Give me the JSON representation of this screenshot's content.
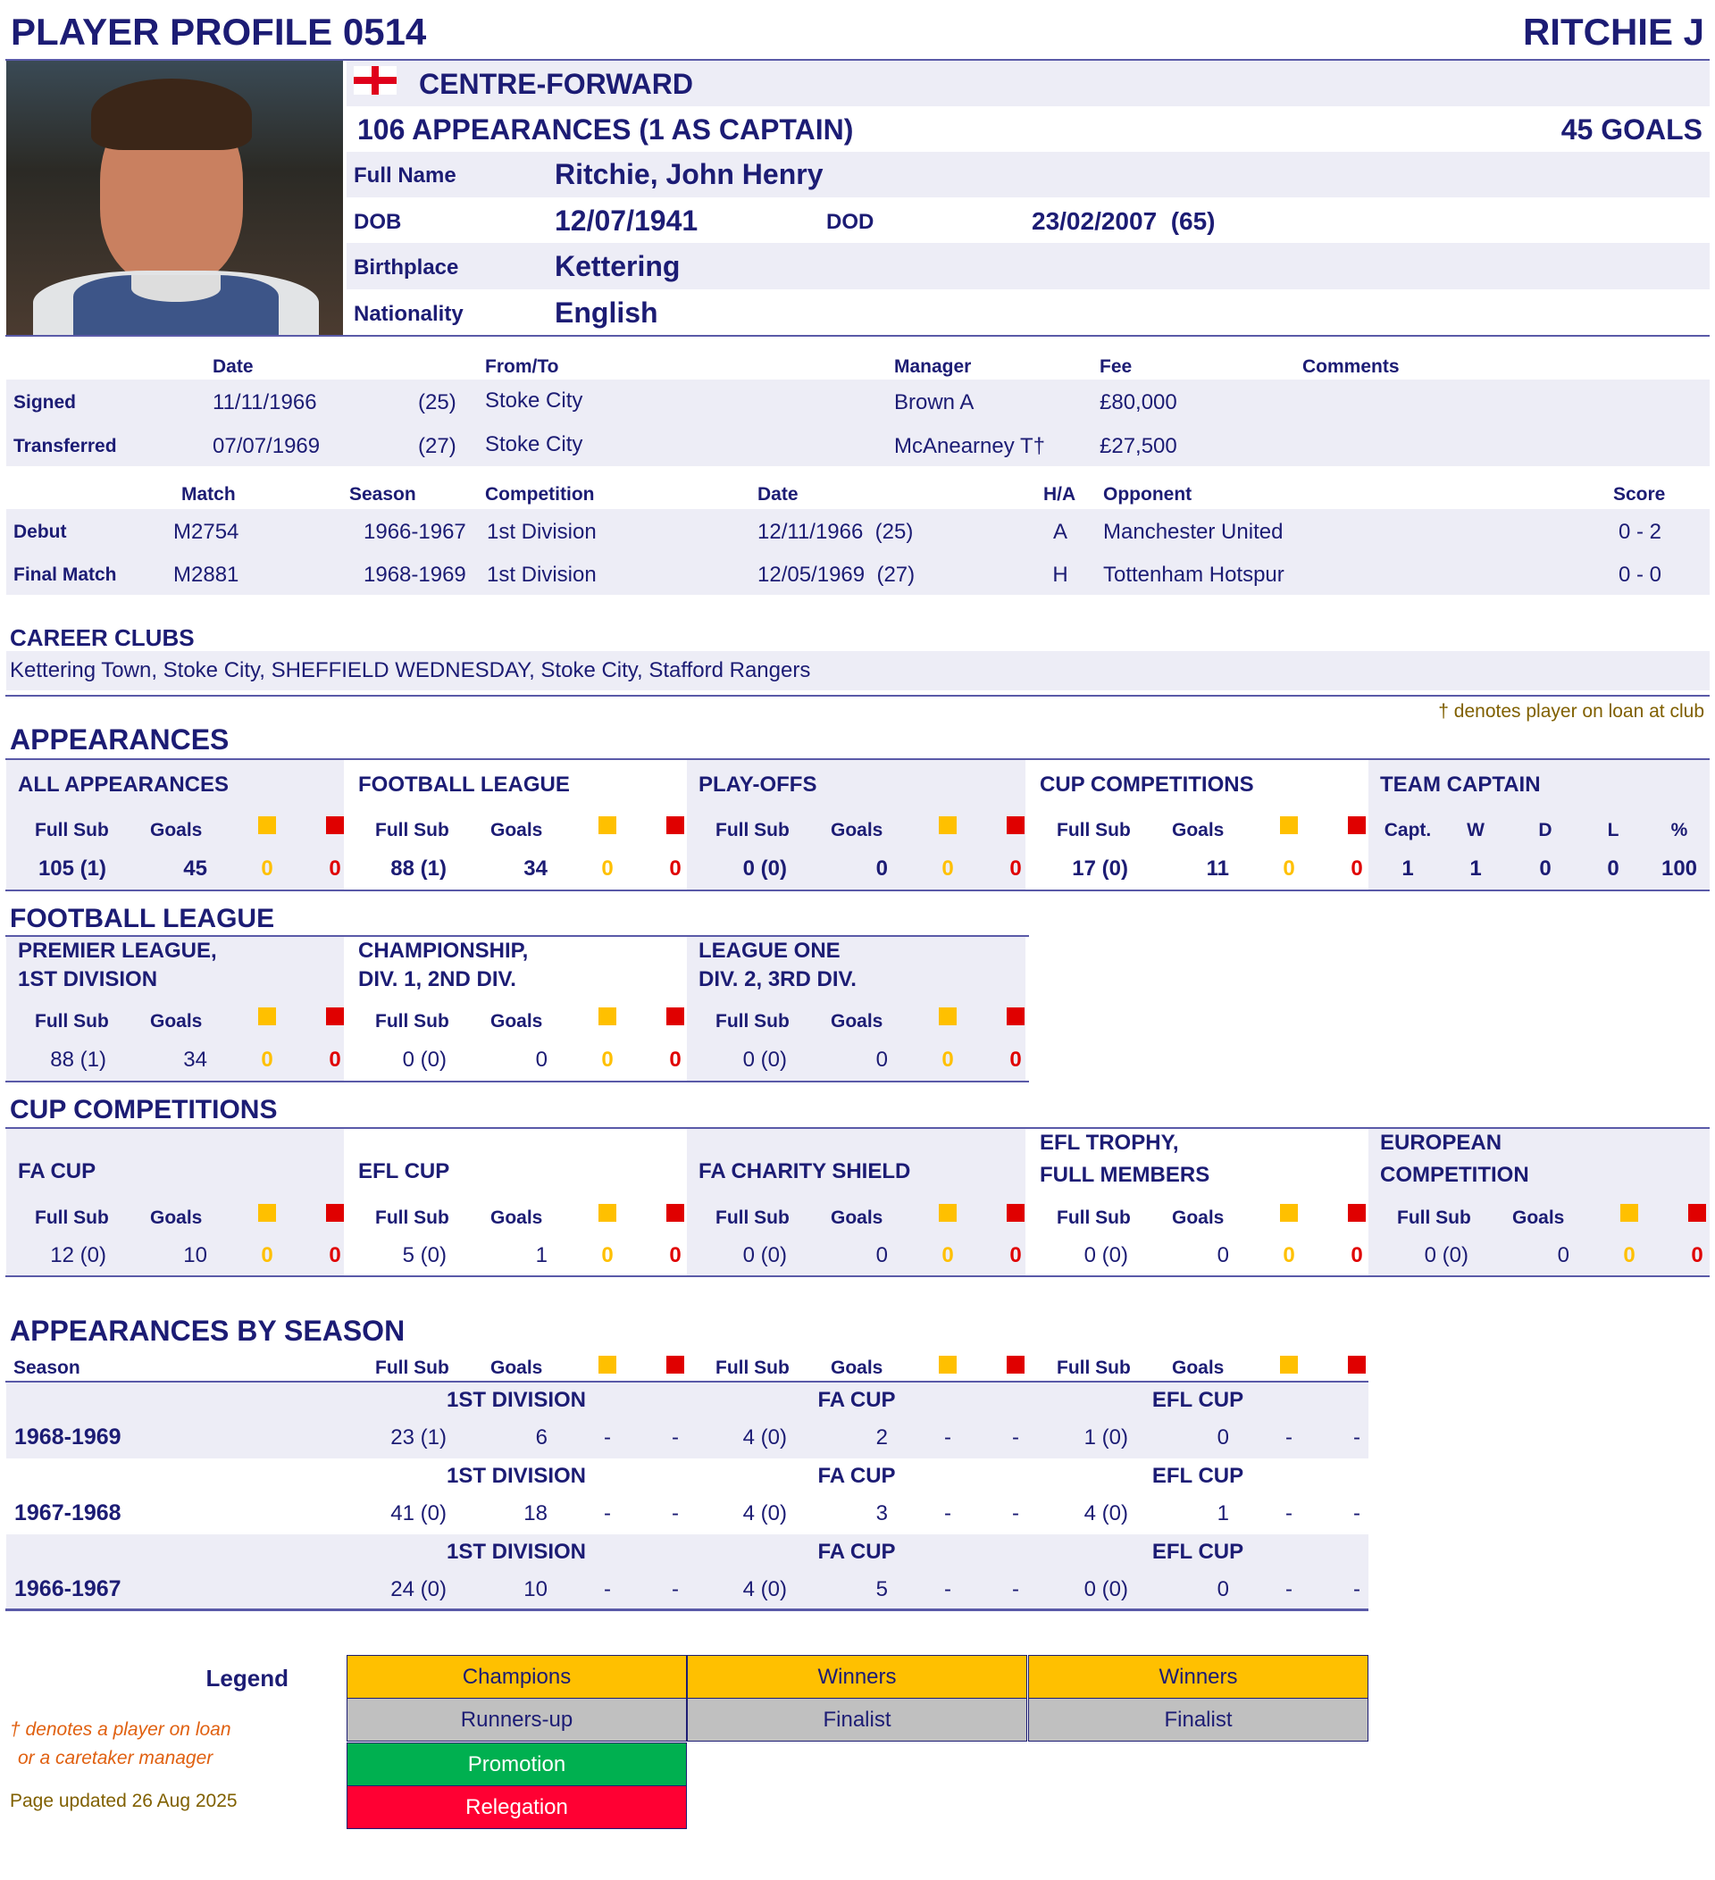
{
  "header": {
    "title": "PLAYER PROFILE 0514",
    "player_short": "RITCHIE J"
  },
  "profile": {
    "flag": "england-flag",
    "position": "CENTRE-FORWARD",
    "appearances_summary": "106 APPEARANCES (1 AS CAPTAIN)",
    "goals_summary": "45 GOALS",
    "full_name_label": "Full Name",
    "full_name": "Ritchie, John Henry",
    "dob_label": "DOB",
    "dob": "12/07/1941",
    "dod_label": "DOD",
    "dod": "23/02/2007  (65)",
    "birthplace_label": "Birthplace",
    "birthplace": "Kettering",
    "nationality_label": "Nationality",
    "nationality": "English"
  },
  "transfers": {
    "headers": {
      "date": "Date",
      "from_to": "From/To",
      "manager": "Manager",
      "fee": "Fee",
      "comments": "Comments"
    },
    "rows": [
      {
        "type": "Signed",
        "date": "11/11/1966",
        "age": "(25)",
        "club": "Stoke City",
        "manager": "Brown A",
        "fee": "£80,000",
        "comments": ""
      },
      {
        "type": "Transferred",
        "date": "07/07/1969",
        "age": "(27)",
        "club": "Stoke City",
        "manager": "McAnearney T†",
        "fee": "£27,500",
        "comments": ""
      }
    ]
  },
  "matches": {
    "headers": {
      "match": "Match",
      "season": "Season",
      "competition": "Competition",
      "date": "Date",
      "ha": "H/A",
      "opponent": "Opponent",
      "score": "Score"
    },
    "rows": [
      {
        "type": "Debut",
        "match": "M2754",
        "season": "1966-1967",
        "competition": "1st Division",
        "date": "12/11/1966  (25)",
        "ha": "A",
        "opponent": "Manchester United",
        "score": "0 - 2"
      },
      {
        "type": "Final Match",
        "match": "M2881",
        "season": "1968-1969",
        "competition": "1st Division",
        "date": "12/05/1969  (27)",
        "ha": "H",
        "opponent": "Tottenham Hotspur",
        "score": "0 - 0"
      }
    ]
  },
  "career_clubs": {
    "label": "CAREER CLUBS",
    "text": "Kettering Town, Stoke City, SHEFFIELD WEDNESDAY, Stoke City, Stafford Rangers"
  },
  "loan_note": "† denotes player on loan at club",
  "colors": {
    "yellow_card": "#ffc000",
    "red_card": "#e00000",
    "navy": "#1c1c74"
  },
  "columns": {
    "full_sub": "Full Sub",
    "goals": "Goals"
  },
  "appearances": {
    "heading": "APPEARANCES",
    "boxes": [
      {
        "title": [
          "ALL APPEARANCES"
        ],
        "full_sub": "105 (1)",
        "goals": "45",
        "yellow": "0",
        "red": "0"
      },
      {
        "title": [
          "FOOTBALL LEAGUE"
        ],
        "full_sub": "88 (1)",
        "goals": "34",
        "yellow": "0",
        "red": "0"
      },
      {
        "title": [
          "PLAY-OFFS"
        ],
        "full_sub": "0 (0)",
        "goals": "0",
        "yellow": "0",
        "red": "0"
      },
      {
        "title": [
          "CUP COMPETITIONS"
        ],
        "full_sub": "17 (0)",
        "goals": "11",
        "yellow": "0",
        "red": "0"
      }
    ],
    "captain": {
      "title": "TEAM CAPTAIN",
      "headers": [
        "Capt.",
        "W",
        "D",
        "L",
        "%"
      ],
      "values": [
        "1",
        "1",
        "0",
        "0",
        "100"
      ]
    }
  },
  "football_league": {
    "heading": "FOOTBALL LEAGUE",
    "boxes": [
      {
        "title": [
          "PREMIER LEAGUE,",
          "1ST DIVISION"
        ],
        "full_sub": "88 (1)",
        "goals": "34",
        "yellow": "0",
        "red": "0"
      },
      {
        "title": [
          "CHAMPIONSHIP,",
          "DIV. 1, 2ND DIV."
        ],
        "full_sub": "0 (0)",
        "goals": "0",
        "yellow": "0",
        "red": "0"
      },
      {
        "title": [
          "LEAGUE ONE",
          "DIV. 2, 3RD DIV."
        ],
        "full_sub": "0 (0)",
        "goals": "0",
        "yellow": "0",
        "red": "0"
      }
    ]
  },
  "cup_competitions": {
    "heading": "CUP COMPETITIONS",
    "boxes": [
      {
        "title": [
          "FA CUP"
        ],
        "full_sub": "12 (0)",
        "goals": "10",
        "yellow": "0",
        "red": "0"
      },
      {
        "title": [
          "EFL CUP"
        ],
        "full_sub": "5 (0)",
        "goals": "1",
        "yellow": "0",
        "red": "0"
      },
      {
        "title": [
          "FA CHARITY SHIELD"
        ],
        "full_sub": "0 (0)",
        "goals": "0",
        "yellow": "0",
        "red": "0"
      },
      {
        "title": [
          "EFL TROPHY,",
          "FULL MEMBERS"
        ],
        "full_sub": "0 (0)",
        "goals": "0",
        "yellow": "0",
        "red": "0"
      },
      {
        "title": [
          "EUROPEAN",
          "COMPETITION"
        ],
        "full_sub": "0 (0)",
        "goals": "0",
        "yellow": "0",
        "red": "0"
      }
    ]
  },
  "by_season": {
    "heading": "APPEARANCES BY SEASON",
    "season_label": "Season",
    "rows": [
      {
        "season": "1968-1969",
        "comps": [
          {
            "name": "1ST DIVISION",
            "full_sub": "23 (1)",
            "goals": "6",
            "yellow": "-",
            "red": "-"
          },
          {
            "name": "FA CUP",
            "full_sub": "4 (0)",
            "goals": "2",
            "yellow": "-",
            "red": "-"
          },
          {
            "name": "EFL CUP",
            "full_sub": "1 (0)",
            "goals": "0",
            "yellow": "-",
            "red": "-"
          }
        ]
      },
      {
        "season": "1967-1968",
        "comps": [
          {
            "name": "1ST DIVISION",
            "full_sub": "41 (0)",
            "goals": "18",
            "yellow": "-",
            "red": "-"
          },
          {
            "name": "FA CUP",
            "full_sub": "4 (0)",
            "goals": "3",
            "yellow": "-",
            "red": "-"
          },
          {
            "name": "EFL CUP",
            "full_sub": "4 (0)",
            "goals": "1",
            "yellow": "-",
            "red": "-"
          }
        ]
      },
      {
        "season": "1966-1967",
        "comps": [
          {
            "name": "1ST DIVISION",
            "full_sub": "24 (0)",
            "goals": "10",
            "yellow": "-",
            "red": "-"
          },
          {
            "name": "FA CUP",
            "full_sub": "4 (0)",
            "goals": "5",
            "yellow": "-",
            "red": "-"
          },
          {
            "name": "EFL CUP",
            "full_sub": "0 (0)",
            "goals": "0",
            "yellow": "-",
            "red": "-"
          }
        ]
      }
    ]
  },
  "legend": {
    "label": "Legend",
    "rows": [
      {
        "color": "#ffc000",
        "text_color": "#1c1c74",
        "cells": [
          "Champions",
          "Winners",
          "Winners"
        ]
      },
      {
        "color": "#c0c0c0",
        "text_color": "#1c1c74",
        "cells": [
          "Runners-up",
          "Finalist",
          "Finalist"
        ]
      },
      {
        "color": "#00b050",
        "text_color": "#ffffff",
        "cells": [
          "Promotion"
        ]
      },
      {
        "color": "#ff0033",
        "text_color": "#ffffff",
        "cells": [
          "Relegation"
        ]
      }
    ]
  },
  "footnote": {
    "line1": "† denotes a player on loan",
    "line2": "or a caretaker manager",
    "updated": "Page updated 26 Aug 2025"
  }
}
